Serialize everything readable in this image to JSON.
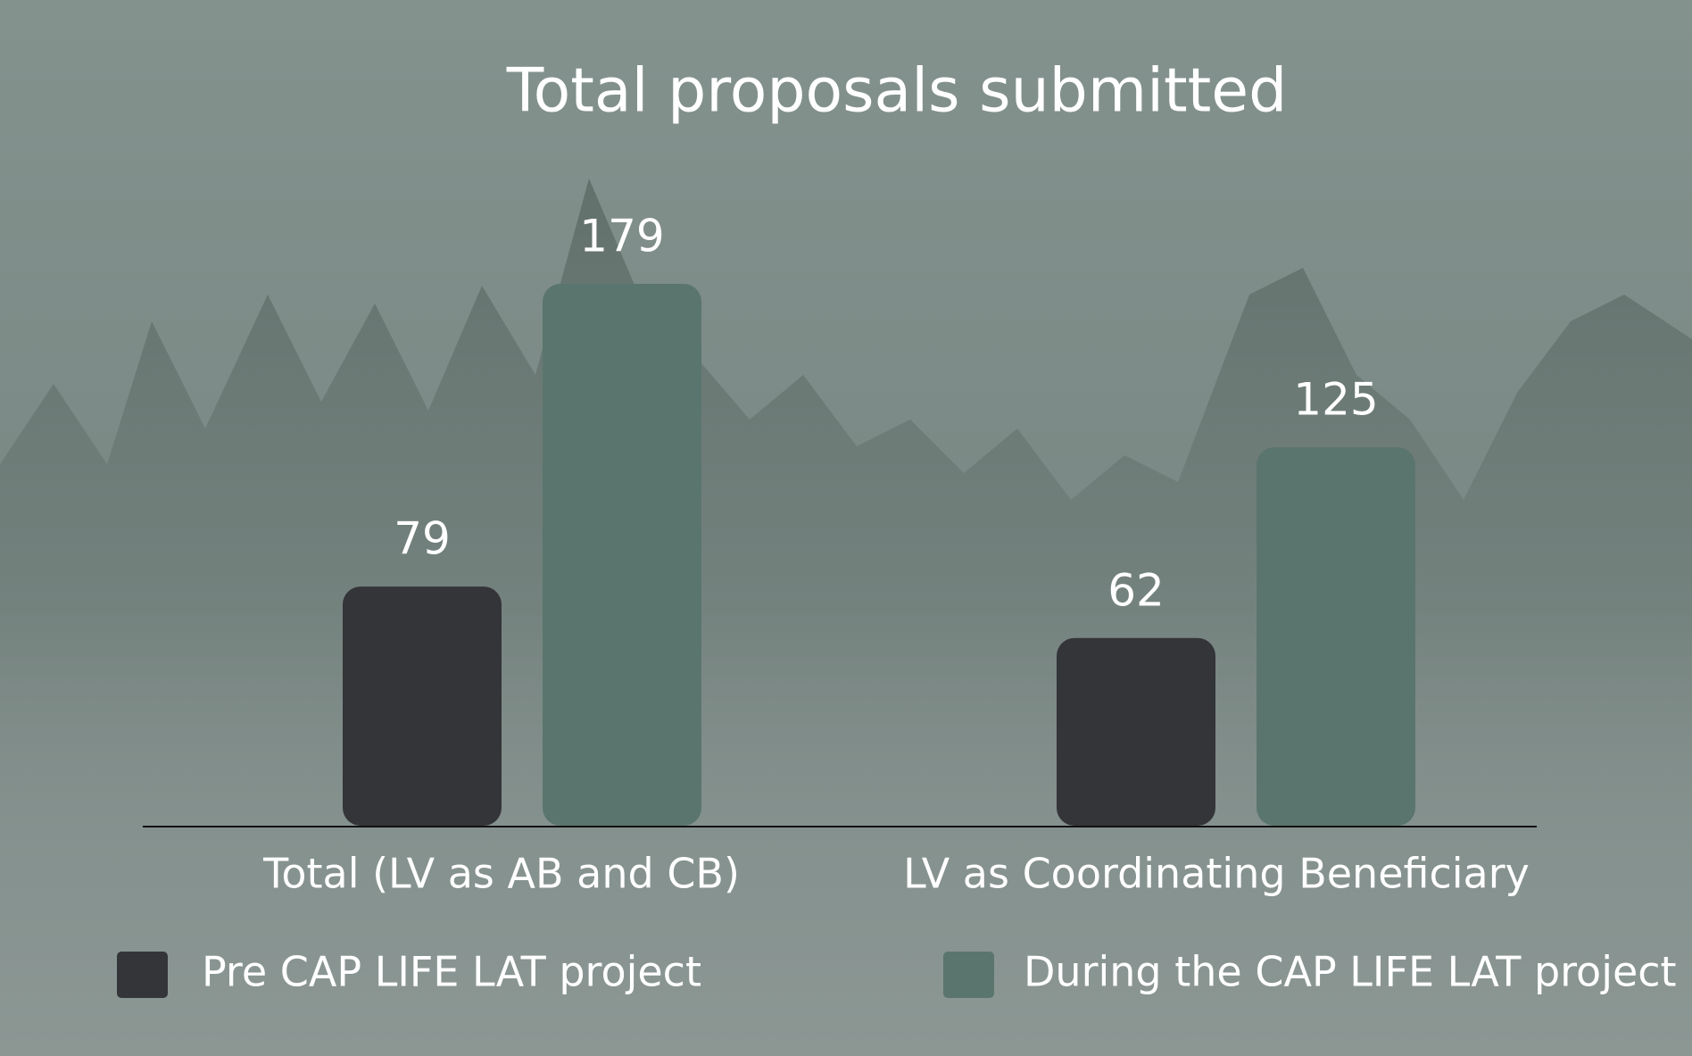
{
  "chart_data": {
    "type": "bar",
    "title": "Total proposals submitted",
    "categories": [
      "Total (LV as AB and CB)",
      "LV as Coordinating Beneficiary"
    ],
    "series": [
      {
        "name": "Pre CAP LIFE LAT project",
        "color": "#343538",
        "values": [
          79,
          62
        ]
      },
      {
        "name": "During the CAP LIFE LAT project",
        "color": "#5a756d",
        "values": [
          179,
          125
        ]
      }
    ]
  }
}
